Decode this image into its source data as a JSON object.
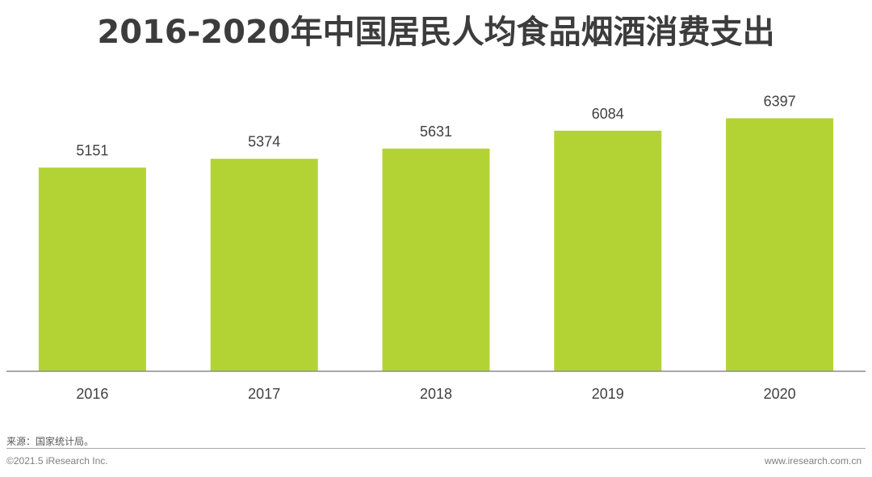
{
  "page": {
    "source": "来源：国家统计局。",
    "copyright": "©2021.5 iResearch Inc.",
    "website": "www.iresearch.com.cn"
  },
  "colors": {
    "bar": "#b3d334",
    "axis": "#8c8c8c",
    "text": "#404040"
  },
  "chart_data": {
    "type": "bar",
    "title": "2016-2020年中国居民人均食品烟酒消费支出",
    "categories": [
      "2016",
      "2017",
      "2018",
      "2019",
      "2020"
    ],
    "values": [
      5151,
      5374,
      5631,
      6084,
      6397
    ],
    "xlabel": "",
    "ylabel": "",
    "ylim": [
      0,
      7000
    ],
    "grid": false,
    "legend": "none",
    "data_labels": true
  }
}
